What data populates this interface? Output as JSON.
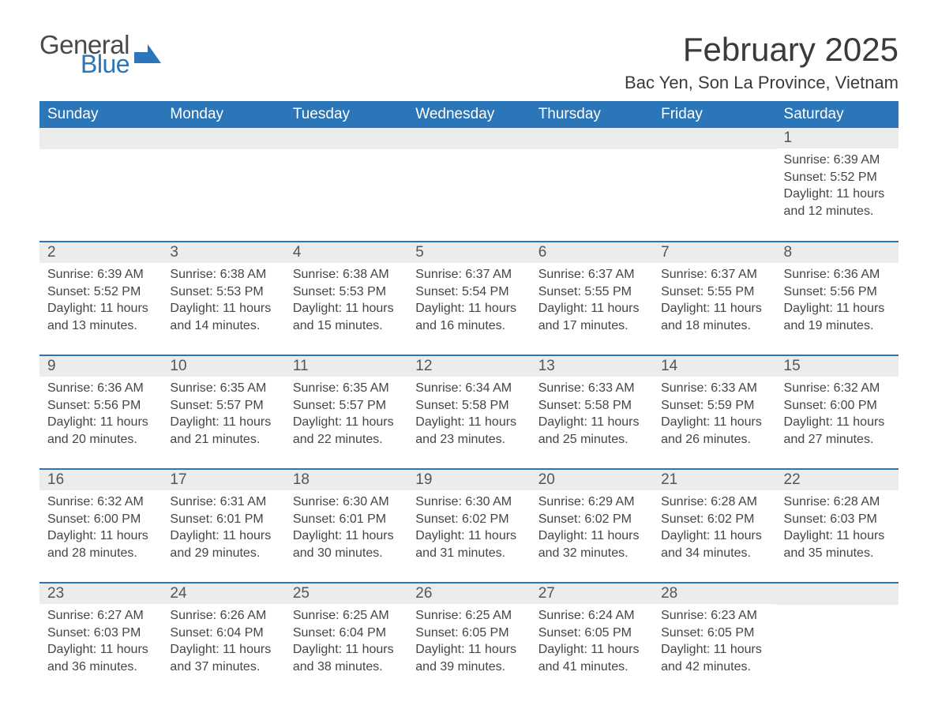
{
  "brand": {
    "part1": "General",
    "part2": "Blue",
    "color_gray": "#4a4a4a",
    "color_blue": "#2a76b8"
  },
  "header": {
    "title": "February 2025",
    "location": "Bac Yen, Son La Province, Vietnam"
  },
  "calendar": {
    "header_bg": "#2a76b8",
    "header_fg": "#ffffff",
    "daynum_bg": "#ececec",
    "row_border": "#2a76b8",
    "text_color": "#454545",
    "columns": [
      "Sunday",
      "Monday",
      "Tuesday",
      "Wednesday",
      "Thursday",
      "Friday",
      "Saturday"
    ],
    "weeks": [
      [
        null,
        null,
        null,
        null,
        null,
        null,
        {
          "n": "1",
          "sunrise": "6:39 AM",
          "sunset": "5:52 PM",
          "daylight": "11 hours and 12 minutes."
        }
      ],
      [
        {
          "n": "2",
          "sunrise": "6:39 AM",
          "sunset": "5:52 PM",
          "daylight": "11 hours and 13 minutes."
        },
        {
          "n": "3",
          "sunrise": "6:38 AM",
          "sunset": "5:53 PM",
          "daylight": "11 hours and 14 minutes."
        },
        {
          "n": "4",
          "sunrise": "6:38 AM",
          "sunset": "5:53 PM",
          "daylight": "11 hours and 15 minutes."
        },
        {
          "n": "5",
          "sunrise": "6:37 AM",
          "sunset": "5:54 PM",
          "daylight": "11 hours and 16 minutes."
        },
        {
          "n": "6",
          "sunrise": "6:37 AM",
          "sunset": "5:55 PM",
          "daylight": "11 hours and 17 minutes."
        },
        {
          "n": "7",
          "sunrise": "6:37 AM",
          "sunset": "5:55 PM",
          "daylight": "11 hours and 18 minutes."
        },
        {
          "n": "8",
          "sunrise": "6:36 AM",
          "sunset": "5:56 PM",
          "daylight": "11 hours and 19 minutes."
        }
      ],
      [
        {
          "n": "9",
          "sunrise": "6:36 AM",
          "sunset": "5:56 PM",
          "daylight": "11 hours and 20 minutes."
        },
        {
          "n": "10",
          "sunrise": "6:35 AM",
          "sunset": "5:57 PM",
          "daylight": "11 hours and 21 minutes."
        },
        {
          "n": "11",
          "sunrise": "6:35 AM",
          "sunset": "5:57 PM",
          "daylight": "11 hours and 22 minutes."
        },
        {
          "n": "12",
          "sunrise": "6:34 AM",
          "sunset": "5:58 PM",
          "daylight": "11 hours and 23 minutes."
        },
        {
          "n": "13",
          "sunrise": "6:33 AM",
          "sunset": "5:58 PM",
          "daylight": "11 hours and 25 minutes."
        },
        {
          "n": "14",
          "sunrise": "6:33 AM",
          "sunset": "5:59 PM",
          "daylight": "11 hours and 26 minutes."
        },
        {
          "n": "15",
          "sunrise": "6:32 AM",
          "sunset": "6:00 PM",
          "daylight": "11 hours and 27 minutes."
        }
      ],
      [
        {
          "n": "16",
          "sunrise": "6:32 AM",
          "sunset": "6:00 PM",
          "daylight": "11 hours and 28 minutes."
        },
        {
          "n": "17",
          "sunrise": "6:31 AM",
          "sunset": "6:01 PM",
          "daylight": "11 hours and 29 minutes."
        },
        {
          "n": "18",
          "sunrise": "6:30 AM",
          "sunset": "6:01 PM",
          "daylight": "11 hours and 30 minutes."
        },
        {
          "n": "19",
          "sunrise": "6:30 AM",
          "sunset": "6:02 PM",
          "daylight": "11 hours and 31 minutes."
        },
        {
          "n": "20",
          "sunrise": "6:29 AM",
          "sunset": "6:02 PM",
          "daylight": "11 hours and 32 minutes."
        },
        {
          "n": "21",
          "sunrise": "6:28 AM",
          "sunset": "6:02 PM",
          "daylight": "11 hours and 34 minutes."
        },
        {
          "n": "22",
          "sunrise": "6:28 AM",
          "sunset": "6:03 PM",
          "daylight": "11 hours and 35 minutes."
        }
      ],
      [
        {
          "n": "23",
          "sunrise": "6:27 AM",
          "sunset": "6:03 PM",
          "daylight": "11 hours and 36 minutes."
        },
        {
          "n": "24",
          "sunrise": "6:26 AM",
          "sunset": "6:04 PM",
          "daylight": "11 hours and 37 minutes."
        },
        {
          "n": "25",
          "sunrise": "6:25 AM",
          "sunset": "6:04 PM",
          "daylight": "11 hours and 38 minutes."
        },
        {
          "n": "26",
          "sunrise": "6:25 AM",
          "sunset": "6:05 PM",
          "daylight": "11 hours and 39 minutes."
        },
        {
          "n": "27",
          "sunrise": "6:24 AM",
          "sunset": "6:05 PM",
          "daylight": "11 hours and 41 minutes."
        },
        {
          "n": "28",
          "sunrise": "6:23 AM",
          "sunset": "6:05 PM",
          "daylight": "11 hours and 42 minutes."
        },
        null
      ]
    ],
    "labels": {
      "sunrise": "Sunrise: ",
      "sunset": "Sunset: ",
      "daylight": "Daylight: "
    }
  }
}
